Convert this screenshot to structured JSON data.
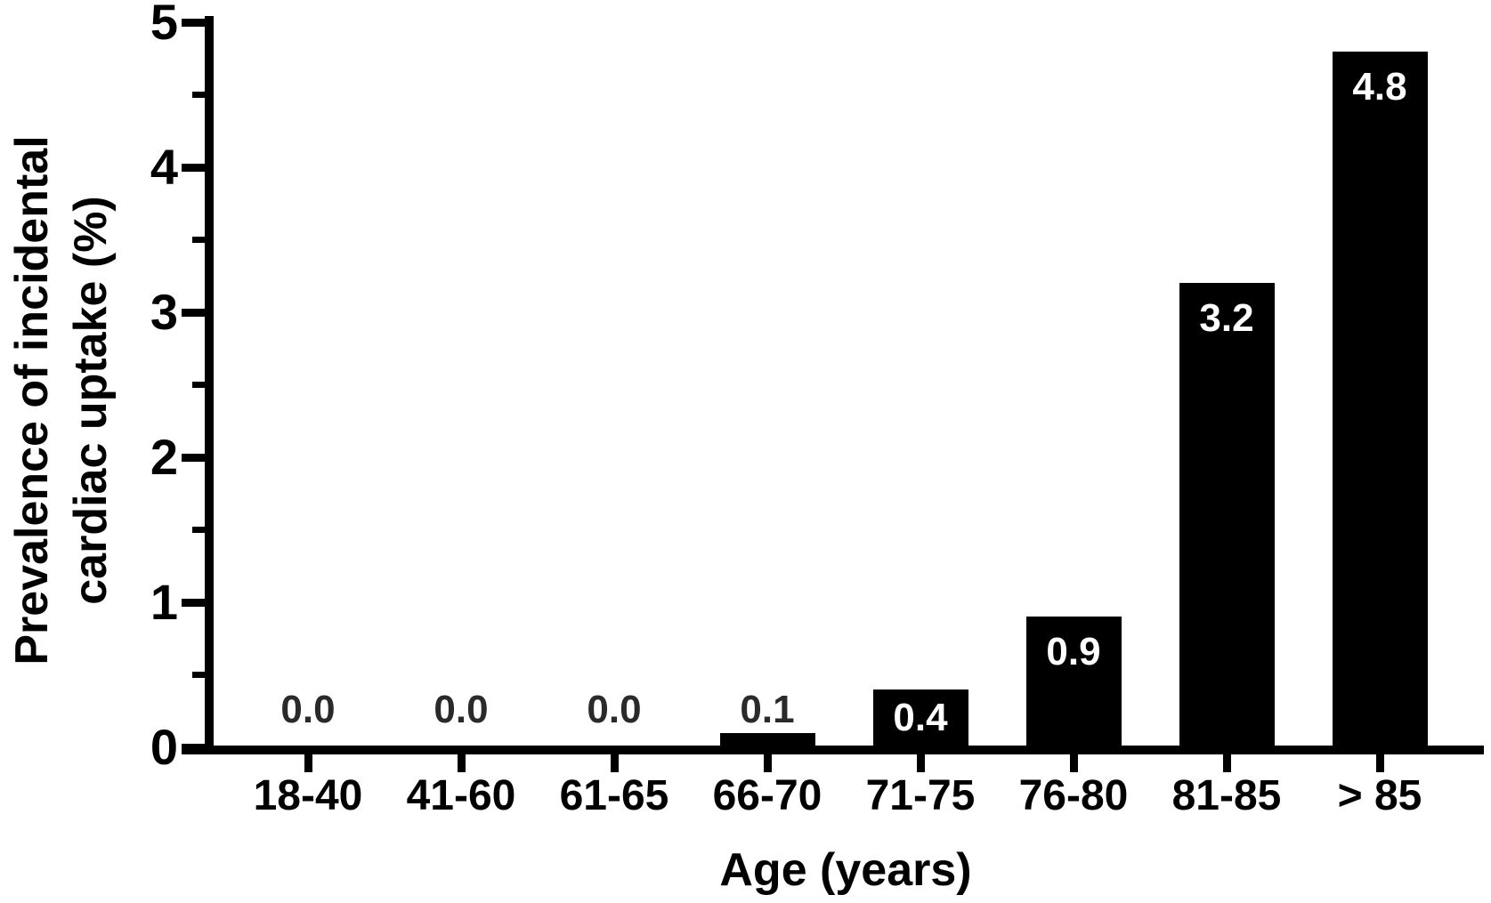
{
  "chart_data": {
    "type": "bar",
    "xlabel": "Age (years)",
    "ylabel": "Prevalence of incidental cardiac uptake (%)",
    "ylabel_lines": [
      "Prevalence of incidental",
      "cardiac uptake (%)"
    ],
    "categories": [
      "18-40",
      "41-60",
      "61-65",
      "66-70",
      "71-75",
      "76-80",
      "81-85",
      "> 85"
    ],
    "values": [
      0.0,
      0.0,
      0.0,
      0.1,
      0.4,
      0.9,
      3.2,
      4.8
    ],
    "value_labels": [
      "0.0",
      "0.0",
      "0.0",
      "0.1",
      "0.4",
      "0.9",
      "3.2",
      "4.8"
    ],
    "ylim": [
      0,
      5
    ],
    "y_major_ticks": [
      0,
      1,
      2,
      3,
      4,
      5
    ],
    "y_minor_ticks": [
      0.5,
      1.5,
      2.5,
      3.5,
      4.5
    ],
    "grid": false,
    "legend_position": "none",
    "bar_color": "#000000",
    "axis_color": "#000000",
    "label_color_inside": "#ffffff",
    "label_color_outside": "#2a2a2a",
    "background_color": "#ffffff"
  }
}
